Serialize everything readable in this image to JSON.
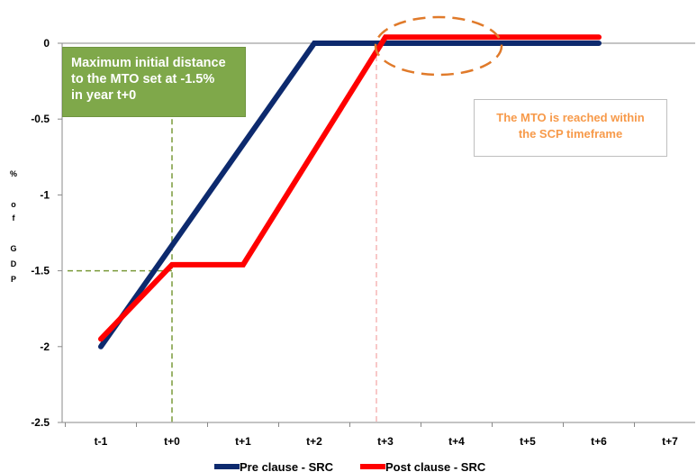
{
  "chart_data": {
    "type": "line",
    "categories": [
      "t-1",
      "t+0",
      "t+1",
      "t+2",
      "t+3",
      "t+4",
      "t+5",
      "t+6",
      "t+7"
    ],
    "ylabel": [
      "%",
      "o",
      "f",
      "G",
      "D",
      "P"
    ],
    "ylim": [
      -2.5,
      0
    ],
    "yticks": [
      "0",
      "-0.5",
      "-1",
      "-1.5",
      "-2",
      "-2.5"
    ],
    "grid": false,
    "legend_position": "bottom",
    "series": [
      {
        "name": "Pre clause - SRC",
        "color": "#0d2a6e",
        "points": [
          [
            0,
            -2.0
          ],
          [
            3.0,
            0.0
          ],
          [
            7.0,
            0.0
          ]
        ]
      },
      {
        "name": "Post clause - SRC",
        "color": "#ff0000",
        "points": [
          [
            0,
            -1.95
          ],
          [
            1.0,
            -1.46
          ],
          [
            2.0,
            -1.46
          ],
          [
            4.0,
            0.04
          ],
          [
            7.0,
            0.04
          ]
        ]
      }
    ],
    "reference_lines": [
      {
        "color": "#7a9a3a",
        "style": "dashed",
        "vertical_x": 1.0,
        "horizontal_y": -1.5
      },
      {
        "color": "#f09090",
        "style": "dashed",
        "vertical_x": 4.0
      }
    ],
    "highlight": {
      "shape": "ellipse",
      "color": "#e07a2a",
      "style": "dashed",
      "center": [
        3.9,
        -0.01
      ]
    },
    "annotations": [
      {
        "lines": [
          "Maximum initial distance",
          "to the MTO set at -1.5%",
          "in year t+0"
        ],
        "bg": "#7fa84a",
        "color": "#ffffff"
      },
      {
        "lines": [
          "The MTO is reached within",
          "the SCP timeframe"
        ],
        "bg": "#ffffff",
        "color": "#f79a4a"
      }
    ]
  }
}
